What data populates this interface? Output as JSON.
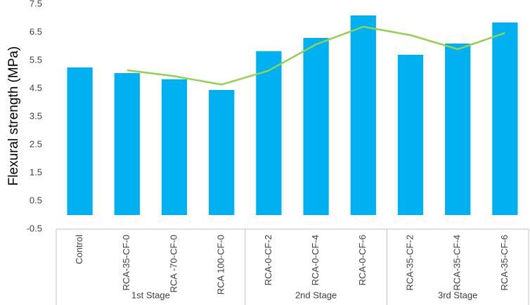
{
  "chart_data": {
    "type": "bar",
    "y_label": "Flexural strength (MPa)",
    "categories": [
      "Control",
      "RCA-35-CF-0",
      "RCA -70-CF-0",
      "RCA 100-CF-0",
      "RCA-0-CF-2",
      "RCA-0-CF-4",
      "RCA-0-CF-6",
      "RCA-35-CF-2",
      "RCA-35-CF-4",
      "RCA-35-CF-6"
    ],
    "groups": [
      {
        "label": "1st Stage",
        "size": 4
      },
      {
        "label": "2nd Stage",
        "size": 3
      },
      {
        "label": "3rd Stage",
        "size": 3
      }
    ],
    "series": [
      {
        "type": "bar",
        "color": "#00b0f0",
        "values": [
          5.25,
          5.05,
          4.83,
          4.45,
          5.83,
          6.3,
          7.1,
          5.7,
          6.1,
          6.85
        ]
      },
      {
        "type": "line",
        "color": "#92d050",
        "values": [
          null,
          5.15,
          4.94,
          4.64,
          5.14,
          6.07,
          6.7,
          6.4,
          5.9,
          6.48
        ]
      }
    ],
    "ylim": [
      -0.5,
      7.5
    ],
    "yticks": [
      -0.5,
      0.5,
      1.5,
      2.5,
      3.5,
      4.5,
      5.5,
      6.5,
      7.5
    ],
    "grid": false
  }
}
